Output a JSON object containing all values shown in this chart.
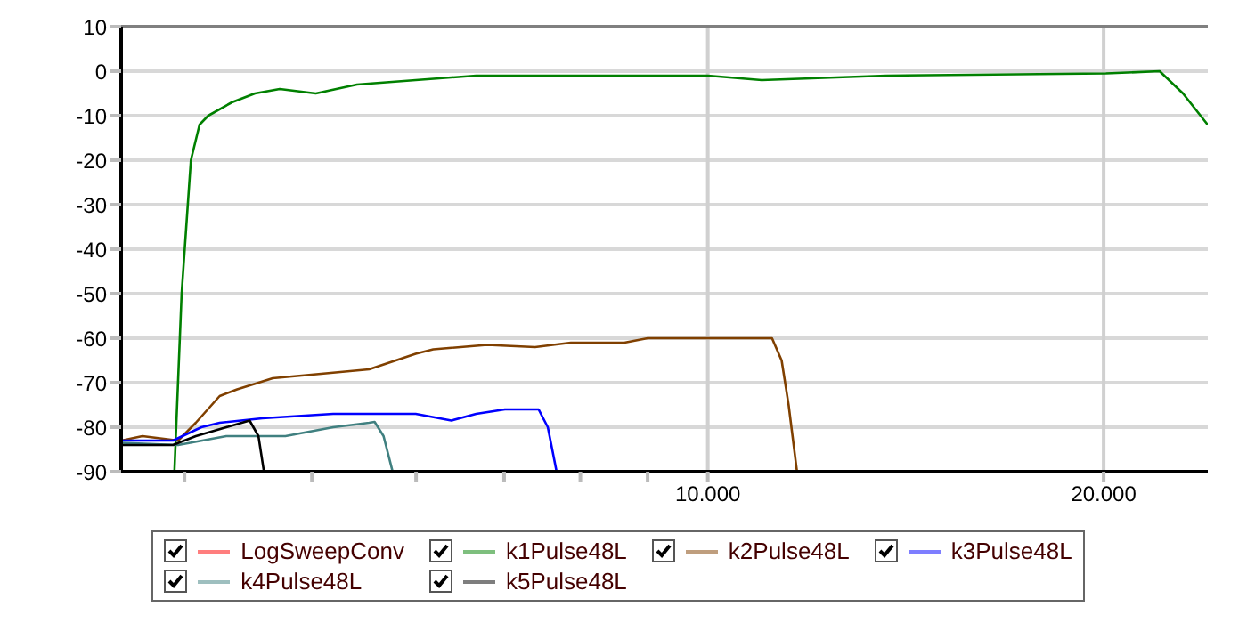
{
  "chart_data": {
    "type": "line",
    "xlim": [
      3580,
      24000
    ],
    "log": "x",
    "xticks": [
      {
        "value": 4000,
        "label": null
      },
      {
        "value": 5000,
        "label": null
      },
      {
        "value": 6000,
        "label": null
      },
      {
        "value": 7000,
        "label": null
      },
      {
        "value": 8000,
        "label": null
      },
      {
        "value": 9000,
        "label": null
      },
      {
        "value": 10000,
        "label": "10.000"
      },
      {
        "value": 20000,
        "label": "20.000"
      }
    ],
    "ylim": [
      -90,
      10
    ],
    "yticks": [
      -90,
      -80,
      -70,
      -60,
      -50,
      -40,
      -30,
      -20,
      -10,
      0,
      10
    ],
    "grid": true,
    "legend": "bottom",
    "marker": "none",
    "line_style": "solid",
    "series": [
      {
        "name": "LogSweepConv",
        "color": "#ff0000"
      },
      {
        "name": "k1Pulse48L",
        "color": "#008000",
        "x": [
          3930,
          3980,
          4045,
          4107,
          4170,
          4346,
          4525,
          4726,
          5034,
          5410,
          5996,
          6666,
          8640,
          10000,
          10990,
          13670,
          20080,
          22060,
          22980,
          23990
        ],
        "values": [
          -90,
          -50,
          -20,
          -12,
          -10,
          -7,
          -5,
          -4,
          -5,
          -3,
          -2,
          -1,
          -1,
          -1,
          -2,
          -1,
          -0.5,
          0,
          -5,
          -12
        ]
      },
      {
        "name": "k2Pulse48L",
        "color": "#804000",
        "x": [
          3580,
          3716,
          3956,
          4080,
          4254,
          4386,
          4668,
          5081,
          5527,
          5996,
          6183,
          6795,
          7390,
          7868,
          8640,
          9000,
          10990,
          11190,
          11380,
          11520,
          11690
        ],
        "values": [
          -83,
          -82,
          -83,
          -79,
          -73,
          -71.5,
          -69,
          -68,
          -67,
          -63.5,
          -62.5,
          -61.5,
          -62,
          -61,
          -61,
          -60,
          -60,
          -60,
          -65,
          -75,
          -90
        ]
      },
      {
        "name": "k3Pulse48L",
        "color": "#0000ff",
        "x": [
          3580,
          3920,
          4120,
          4254,
          4583,
          5190,
          5996,
          6383,
          6666,
          7010,
          7436,
          7557,
          7674
        ],
        "values": [
          -83,
          -83,
          -80,
          -79,
          -78,
          -77,
          -77,
          -78.5,
          -77,
          -76,
          -76,
          -80,
          -90
        ]
      },
      {
        "name": "k4Pulse48L",
        "color": "#408080",
        "x": [
          3580,
          3956,
          4304,
          4773,
          5190,
          5527,
          5580,
          5668,
          5759
        ],
        "values": [
          -83.5,
          -84,
          -82,
          -82,
          -80,
          -79,
          -78.8,
          -82,
          -90
        ]
      },
      {
        "name": "k5Pulse48L",
        "color": "#000000",
        "x": [
          3580,
          3920,
          4080,
          4304,
          4483,
          4553,
          4597
        ],
        "values": [
          -84,
          -84,
          -82,
          -80,
          -78.5,
          -82,
          -90
        ]
      }
    ]
  }
}
